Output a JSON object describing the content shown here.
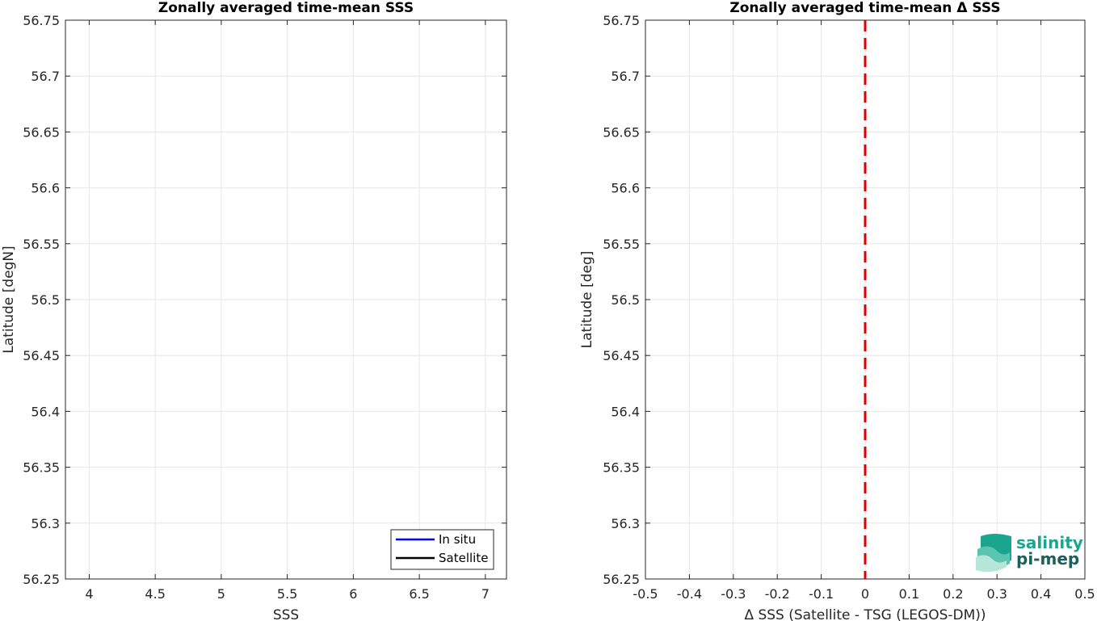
{
  "chart_data": [
    {
      "type": "line",
      "title": "Zonally averaged time-mean SSS",
      "xlabel": "SSS",
      "ylabel": "Latitude [degN]",
      "xlim": [
        3.82,
        7.16
      ],
      "ylim": [
        56.25,
        56.75
      ],
      "xticks": [
        4,
        4.5,
        5,
        5.5,
        6,
        6.5,
        7
      ],
      "xtick_labels": [
        "4",
        "4.5",
        "5",
        "5.5",
        "6",
        "6.5",
        "7"
      ],
      "yticks": [
        56.25,
        56.3,
        56.35,
        56.4,
        56.45,
        56.5,
        56.55,
        56.6,
        56.65,
        56.7,
        56.75
      ],
      "ytick_labels": [
        "56.25",
        "56.3",
        "56.35",
        "56.4",
        "56.45",
        "56.5",
        "56.55",
        "56.6",
        "56.65",
        "56.7",
        "56.75"
      ],
      "grid": true,
      "legend_position": "bottom-right",
      "series": [
        {
          "name": "In situ",
          "color": "#0000ff",
          "x": [],
          "y": []
        },
        {
          "name": "Satellite",
          "color": "#000000",
          "x": [],
          "y": []
        }
      ]
    },
    {
      "type": "line",
      "title": "Zonally averaged time-mean Δ SSS",
      "xlabel": "Δ SSS (Satellite - TSG (LEGOS-DM))",
      "ylabel": "Latitude [deg]",
      "xlim": [
        -0.5,
        0.5
      ],
      "ylim": [
        56.25,
        56.75
      ],
      "xticks": [
        -0.5,
        -0.4,
        -0.3,
        -0.2,
        -0.1,
        0,
        0.1,
        0.2,
        0.3,
        0.4,
        0.5
      ],
      "xtick_labels": [
        "-0.5",
        "-0.4",
        "-0.3",
        "-0.2",
        "-0.1",
        "0",
        "0.1",
        "0.2",
        "0.3",
        "0.4",
        "0.5"
      ],
      "yticks": [
        56.25,
        56.3,
        56.35,
        56.4,
        56.45,
        56.5,
        56.55,
        56.6,
        56.65,
        56.7,
        56.75
      ],
      "ytick_labels": [
        "56.25",
        "56.3",
        "56.35",
        "56.4",
        "56.45",
        "56.5",
        "56.55",
        "56.6",
        "56.65",
        "56.7",
        "56.75"
      ],
      "grid": true,
      "reference_line": {
        "x": 0,
        "color": "#e00000",
        "style": "dashed"
      },
      "series": []
    }
  ],
  "logo": {
    "line1": "salinity",
    "line2": "pi-mep",
    "color_main": "#1aa58f",
    "color_sub": "#1f5e5a"
  }
}
